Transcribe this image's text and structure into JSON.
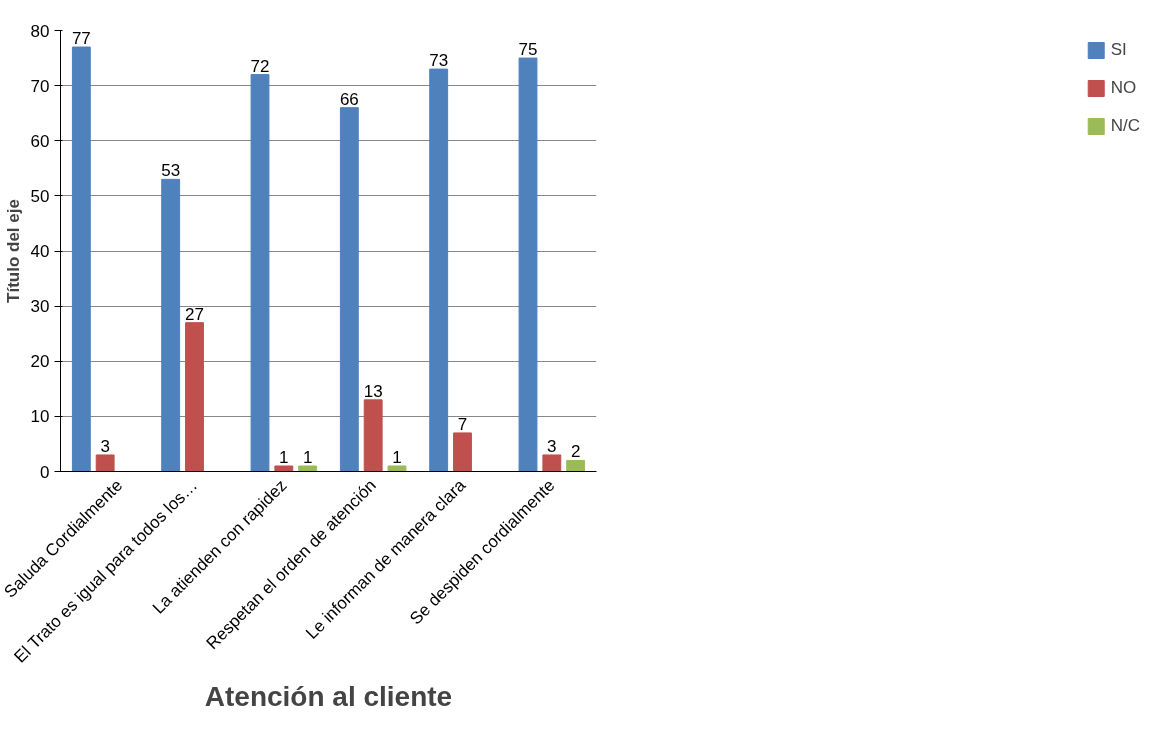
{
  "chart_data": {
    "type": "bar",
    "xlabel": "Atención al cliente",
    "ylabel": "Título del eje",
    "categories": [
      "Saluda Cordialmente",
      "El Trato es igual para todos los…",
      "La atienden con rapidez",
      "Respetan el orden de atención",
      "Le informan de manera clara",
      "Se despiden cordialmente"
    ],
    "series": [
      {
        "name": "SI",
        "color": "#4f81bd",
        "values": [
          77,
          53,
          72,
          66,
          73,
          75
        ]
      },
      {
        "name": "NO",
        "color": "#c0504d",
        "values": [
          3,
          27,
          1,
          13,
          7,
          3
        ]
      },
      {
        "name": "N/C",
        "color": "#9bbb59",
        "values": [
          null,
          null,
          1,
          1,
          null,
          2
        ]
      }
    ],
    "ylim": [
      0,
      80
    ],
    "yticks": [
      0,
      10,
      20,
      30,
      40,
      50,
      60,
      70,
      80
    ],
    "grid": "y",
    "legend": "right",
    "data_labels": true
  }
}
